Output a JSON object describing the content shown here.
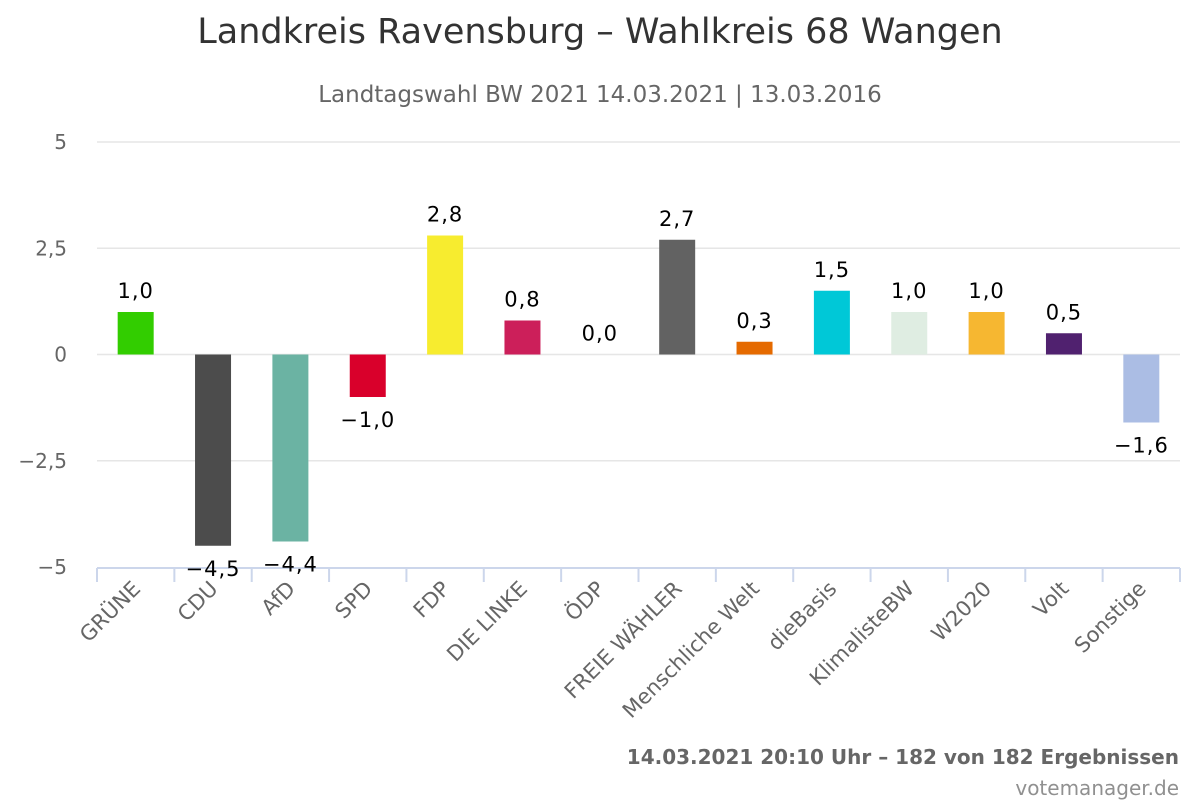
{
  "chart_data": {
    "type": "bar",
    "title": "Landkreis Ravensburg – Wahlkreis 68 Wangen",
    "subtitle": "Landtagswahl BW 2021 14.03.2021 | 13.03.2016",
    "xlabel": "",
    "ylabel": "",
    "ylim": [
      -5,
      5
    ],
    "yticks": [
      {
        "value": 5,
        "label": "5"
      },
      {
        "value": 2.5,
        "label": "2,5"
      },
      {
        "value": 0,
        "label": "0"
      },
      {
        "value": -2.5,
        "label": "−2,5"
      },
      {
        "value": -5,
        "label": "−5"
      }
    ],
    "grid": true,
    "legend": "none",
    "categories": [
      "GRÜNE",
      "CDU",
      "AfD",
      "SPD",
      "FDP",
      "DIE LINKE",
      "ÖDP",
      "FREIE WÄHLER",
      "Menschliche Welt",
      "dieBasis",
      "KlimalisteBW",
      "W2020",
      "Volt",
      "Sonstige"
    ],
    "values": [
      1.0,
      -4.5,
      -4.4,
      -1.0,
      2.8,
      0.8,
      0.0,
      2.7,
      0.3,
      1.5,
      1.0,
      1.0,
      0.5,
      -1.6
    ],
    "value_labels": [
      "1,0",
      "−4,5",
      "−4,4",
      "−1,0",
      "2,8",
      "0,8",
      "0,0",
      "2,7",
      "0,3",
      "1,5",
      "1,0",
      "1,0",
      "0,5",
      "−1,6"
    ],
    "colors": [
      "#32cd00",
      "#4c4c4c",
      "#6bb3a3",
      "#d9002b",
      "#f7ec2f",
      "#cc1f5a",
      "#f58220",
      "#626262",
      "#e56a00",
      "#00c8d7",
      "#dfede2",
      "#f6b731",
      "#50216f",
      "#abbde4"
    ]
  },
  "footer": {
    "status": "14.03.2021 20:10 Uhr – 182 von 182 Ergebnissen",
    "credit": "votemanager.de"
  }
}
